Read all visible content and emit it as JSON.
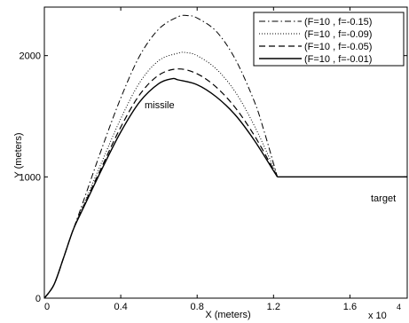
{
  "chart_data": {
    "type": "line",
    "title": "",
    "xlabel": "X (meters)",
    "ylabel": "Y (meters)",
    "x_multiplier": "x 10",
    "x_multiplier_exp": "4",
    "xlim": [
      0,
      1.9
    ],
    "ylim": [
      0,
      2400
    ],
    "xticks": [
      0,
      0.4,
      0.8,
      1.2,
      1.6
    ],
    "xtick_labels": [
      "0",
      "0.4",
      "0.8",
      "1.2",
      "1.6"
    ],
    "yticks": [
      0,
      1000,
      2000
    ],
    "ytick_labels": [
      "0",
      "1000",
      "2000"
    ],
    "grid": false,
    "legend_position": "top-right",
    "annotations": [
      {
        "text": "missile",
        "x": 0.55,
        "y": 1650
      },
      {
        "text": "target",
        "x": 1.78,
        "y": 920
      }
    ],
    "target_line": {
      "x_start": 1.22,
      "x_end": 1.9,
      "y": 1000
    },
    "series": [
      {
        "name": "(F=10 , f=-0.15)",
        "style": "dashdot",
        "x": [
          0,
          0.05,
          0.1,
          0.15,
          0.2,
          0.3,
          0.4,
          0.5,
          0.6,
          0.7,
          0.75,
          0.8,
          0.9,
          1.0,
          1.1,
          1.15,
          1.2,
          1.22
        ],
        "y": [
          0,
          110,
          330,
          560,
          780,
          1230,
          1650,
          2000,
          2220,
          2320,
          2330,
          2310,
          2200,
          1970,
          1620,
          1380,
          1110,
          1000
        ]
      },
      {
        "name": "(F=10 , f=-0.09)",
        "style": "dotted",
        "x": [
          0,
          0.05,
          0.1,
          0.15,
          0.2,
          0.3,
          0.4,
          0.5,
          0.6,
          0.7,
          0.74,
          0.8,
          0.9,
          1.0,
          1.1,
          1.2,
          1.22
        ],
        "y": [
          0,
          110,
          330,
          560,
          750,
          1120,
          1480,
          1780,
          1960,
          2020,
          2025,
          2000,
          1890,
          1700,
          1420,
          1080,
          1000
        ]
      },
      {
        "name": "(F=10 , f=-0.05)",
        "style": "dashed",
        "x": [
          0,
          0.05,
          0.1,
          0.15,
          0.2,
          0.3,
          0.4,
          0.5,
          0.6,
          0.7,
          0.8,
          0.9,
          1.0,
          1.1,
          1.2,
          1.22
        ],
        "y": [
          0,
          110,
          330,
          560,
          740,
          1080,
          1410,
          1680,
          1840,
          1890,
          1850,
          1740,
          1570,
          1340,
          1060,
          1000
        ]
      },
      {
        "name": "(F=10 , f=-0.01)",
        "style": "solid",
        "x": [
          0,
          0.05,
          0.1,
          0.15,
          0.2,
          0.3,
          0.4,
          0.5,
          0.6,
          0.67,
          0.7,
          0.8,
          0.9,
          1.0,
          1.1,
          1.2,
          1.22
        ],
        "y": [
          0,
          110,
          330,
          560,
          730,
          1060,
          1370,
          1620,
          1770,
          1810,
          1800,
          1760,
          1660,
          1510,
          1300,
          1050,
          1000
        ]
      }
    ]
  }
}
